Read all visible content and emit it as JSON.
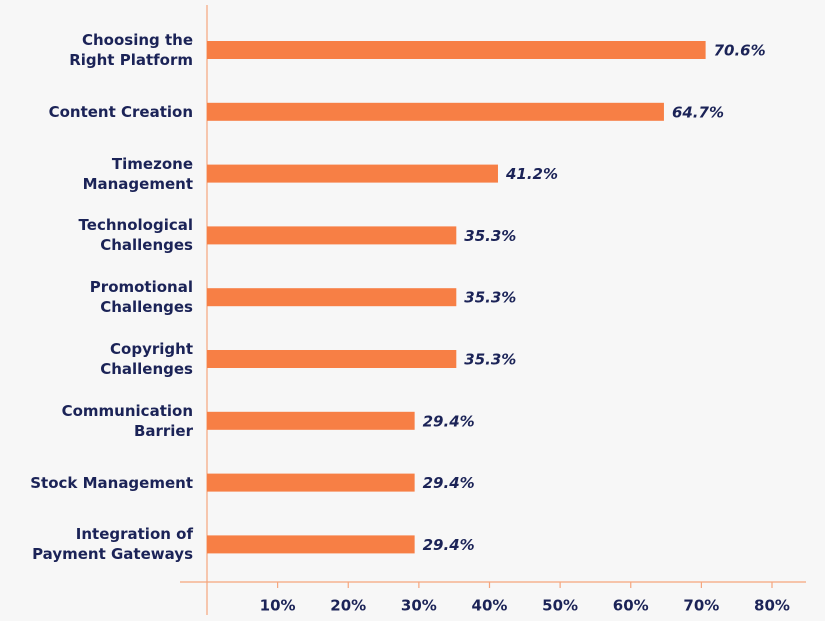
{
  "chart_data": {
    "type": "hbar",
    "categories": [
      "Choosing the\nRight Platform",
      "Content Creation",
      "Timezone\nManagement",
      "Technological\nChallenges",
      "Promotional\nChallenges",
      "Copyright\nChallenges",
      "Communication\nBarrier",
      "Stock Management",
      "Integration of\nPayment Gateways"
    ],
    "values": [
      70.6,
      64.7,
      41.2,
      35.3,
      35.3,
      35.3,
      29.4,
      29.4,
      29.4
    ],
    "value_labels": [
      "70.6%",
      "64.7%",
      "41.2%",
      "35.3%",
      "35.3%",
      "35.3%",
      "29.4%",
      "29.4%",
      "29.4%"
    ],
    "color": "#f77f45",
    "xlim": [
      0,
      80
    ],
    "xticks": [
      {
        "value": 10,
        "label": "10%"
      },
      {
        "value": 20,
        "label": "20%"
      },
      {
        "value": 30,
        "label": "30%"
      },
      {
        "value": 40,
        "label": "40%"
      },
      {
        "value": 50,
        "label": "50%"
      },
      {
        "value": 60,
        "label": "60%"
      },
      {
        "value": 70,
        "label": "70%"
      },
      {
        "value": 80,
        "label": "80%"
      }
    ]
  }
}
